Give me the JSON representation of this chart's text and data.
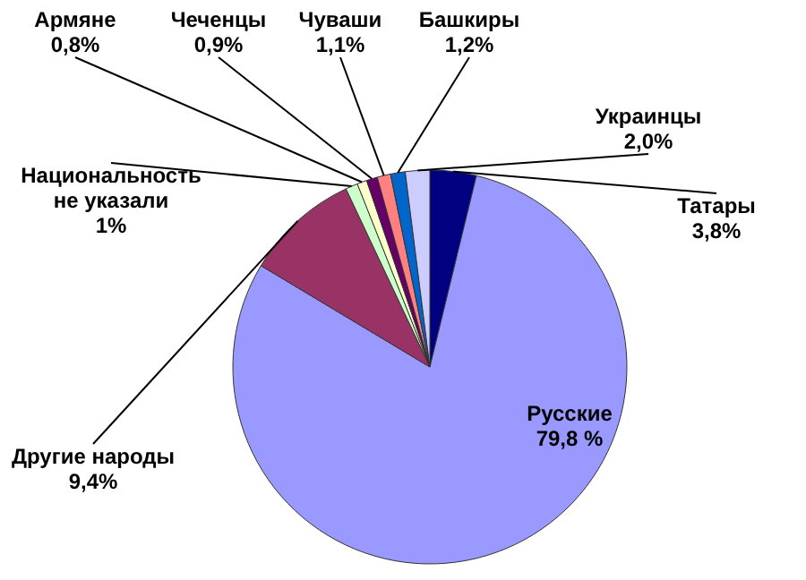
{
  "chart_data": {
    "type": "pie",
    "categories": [
      "Татары",
      "Русские",
      "Другие народы",
      "Национальность не указали",
      "Армяне",
      "Чеченцы",
      "Чуваши",
      "Башкиры",
      "Украинцы"
    ],
    "values": [
      3.8,
      79.8,
      9.4,
      1,
      0.8,
      0.9,
      1.1,
      1.2,
      2.0
    ],
    "value_labels": [
      "3,8%",
      "79,8 %",
      "9,4%",
      "1%",
      "0,8%",
      "0,9%",
      "1,1%",
      "1,2%",
      "2,0%"
    ],
    "colors": [
      "#000080",
      "#9999ff",
      "#993366",
      "#ccffcc",
      "#ffffcc",
      "#660066",
      "#ff8080",
      "#0066cc",
      "#ccccff"
    ],
    "legend": false
  }
}
